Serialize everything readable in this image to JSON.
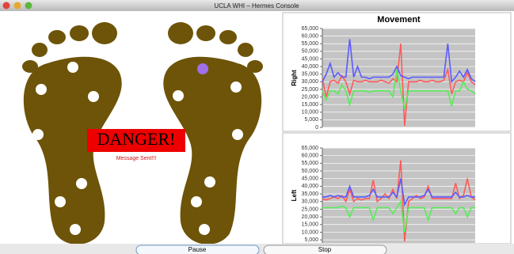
{
  "window": {
    "title": "UCLA WHI – Hermes Console"
  },
  "alert": {
    "text": "DANGER!",
    "message": "Message Sent!!!"
  },
  "buttons": [
    "Pause",
    "Stop"
  ],
  "chart_data": [
    {
      "type": "line",
      "title": "Movement",
      "y_label": "Right",
      "grid": true,
      "ylim": [
        0,
        65000
      ],
      "yticks": [
        0,
        {
          "value": 5000,
          "label": "5,000"
        },
        {
          "value": 10000,
          "label": "10,000"
        },
        {
          "value": 15000,
          "label": "15,000"
        },
        {
          "value": 20000,
          "label": "20,000"
        },
        {
          "value": 25000,
          "label": "25,000"
        },
        {
          "value": 30000,
          "label": "30,000"
        },
        {
          "value": 35000,
          "label": "35,000"
        },
        {
          "value": 40000,
          "label": "40,000"
        },
        {
          "value": 45000,
          "label": "45,000"
        },
        {
          "value": 50000,
          "label": "50,000"
        },
        {
          "value": 55000,
          "label": "55,000"
        },
        {
          "value": 60000,
          "label": "60,000"
        },
        {
          "value": 65000,
          "label": "65,000"
        }
      ],
      "series": [
        {
          "color": "#ff5a5a",
          "values": [
            32000,
            20000,
            30000,
            31000,
            29000,
            34000,
            30000,
            22000,
            31000,
            30000,
            30000,
            31000,
            30000,
            30000,
            30000,
            31000,
            30000,
            29000,
            32000,
            30000,
            55000,
            1000,
            30000,
            30000,
            30000,
            31000,
            30000,
            30000,
            31000,
            30000,
            30000,
            31000,
            38000,
            22000,
            30000,
            31000,
            30000,
            36000,
            30000,
            28000
          ]
        },
        {
          "color": "#55ee55",
          "values": [
            24000,
            18000,
            24000,
            24000,
            22000,
            28000,
            24000,
            15000,
            24000,
            24000,
            24000,
            24000,
            23000,
            24000,
            24000,
            24000,
            24000,
            24000,
            20000,
            38000,
            24000,
            12000,
            24000,
            24000,
            24000,
            24000,
            24000,
            24000,
            24000,
            24000,
            24000,
            24000,
            24000,
            14000,
            24000,
            24000,
            30000,
            25000,
            24000,
            22000
          ]
        },
        {
          "color": "#5a5aff",
          "values": [
            30000,
            35000,
            42000,
            33000,
            36000,
            33000,
            33000,
            58000,
            33000,
            40000,
            33000,
            33000,
            32000,
            33000,
            33000,
            33000,
            33000,
            33000,
            35000,
            40000,
            34000,
            33000,
            32000,
            33000,
            33000,
            33000,
            33000,
            33000,
            33000,
            33000,
            33000,
            33000,
            55000,
            30000,
            33000,
            37000,
            33000,
            38000,
            32000,
            30000
          ]
        }
      ]
    },
    {
      "type": "line",
      "y_label": "Left",
      "grid": true,
      "ylim": [
        3000,
        65000
      ],
      "yticks": [
        {
          "value": 5000,
          "label": "5,000"
        },
        {
          "value": 10000,
          "label": "10,000"
        },
        {
          "value": 15000,
          "label": "15,000"
        },
        {
          "value": 20000,
          "label": "20,000"
        },
        {
          "value": 25000,
          "label": "25,000"
        },
        {
          "value": 30000,
          "label": "30,000"
        },
        {
          "value": 35000,
          "label": "35,000"
        },
        {
          "value": 40000,
          "label": "40,000"
        },
        {
          "value": 45000,
          "label": "45,000"
        },
        {
          "value": 50000,
          "label": "50,000"
        },
        {
          "value": 55000,
          "label": "55,000"
        },
        {
          "value": 60000,
          "label": "60,000"
        },
        {
          "value": 65000,
          "label": "65,000"
        }
      ],
      "series": [
        {
          "color": "#ff5a5a",
          "values": [
            32000,
            31000,
            32000,
            33000,
            32000,
            34000,
            30000,
            38000,
            30000,
            32000,
            31000,
            32000,
            32000,
            44000,
            30000,
            32000,
            35000,
            32000,
            38000,
            32000,
            57000,
            4000,
            30000,
            32000,
            34000,
            32000,
            33000,
            40000,
            32000,
            32000,
            32000,
            32000,
            32000,
            32000,
            42000,
            32000,
            34000,
            45000,
            33000,
            31000
          ]
        },
        {
          "color": "#55ee55",
          "values": [
            26000,
            26000,
            26000,
            26000,
            26000,
            27000,
            26000,
            20000,
            26000,
            26000,
            26000,
            26000,
            26000,
            18000,
            26000,
            26000,
            26000,
            26000,
            22000,
            26000,
            30000,
            10000,
            26000,
            26000,
            26000,
            26000,
            26000,
            18000,
            26000,
            26000,
            26000,
            26000,
            26000,
            26000,
            22000,
            26000,
            26000,
            20000,
            26000,
            26000
          ]
        },
        {
          "color": "#5a5aff",
          "values": [
            33000,
            33000,
            34000,
            33000,
            34000,
            33000,
            33000,
            40000,
            33000,
            33000,
            33000,
            33000,
            34000,
            38000,
            33000,
            33000,
            33000,
            33000,
            36000,
            33000,
            45000,
            28000,
            33000,
            33000,
            33000,
            33000,
            34000,
            38000,
            33000,
            33000,
            33000,
            33000,
            33000,
            33000,
            36000,
            33000,
            33000,
            34000,
            33000,
            33000
          ]
        }
      ]
    }
  ]
}
